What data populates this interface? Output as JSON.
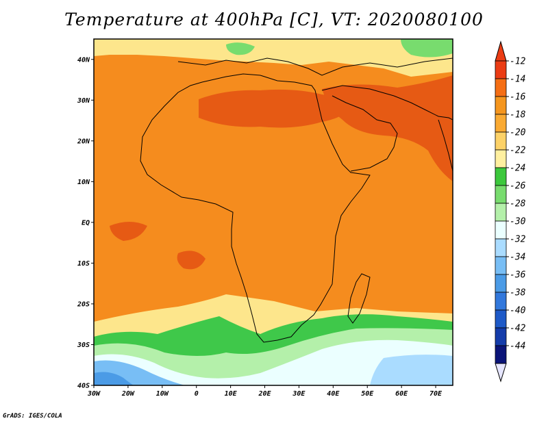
{
  "title": "Temperature at 400hPa [C], VT: 2020080100",
  "credit": "GrADS: IGES/COLA",
  "map": {
    "lon_range": [
      -30,
      75
    ],
    "lat_range": [
      -40,
      45
    ],
    "x_ticks": [
      {
        "lon": -30,
        "label": "30W"
      },
      {
        "lon": -20,
        "label": "20W"
      },
      {
        "lon": -10,
        "label": "10W"
      },
      {
        "lon": 0,
        "label": "0"
      },
      {
        "lon": 10,
        "label": "10E"
      },
      {
        "lon": 20,
        "label": "20E"
      },
      {
        "lon": 30,
        "label": "30E"
      },
      {
        "lon": 40,
        "label": "40E"
      },
      {
        "lon": 50,
        "label": "50E"
      },
      {
        "lon": 60,
        "label": "60E"
      },
      {
        "lon": 70,
        "label": "70E"
      }
    ],
    "y_ticks": [
      {
        "lat": 40,
        "label": "40N"
      },
      {
        "lat": 30,
        "label": "30N"
      },
      {
        "lat": 20,
        "label": "20N"
      },
      {
        "lat": 10,
        "label": "10N"
      },
      {
        "lat": 0,
        "label": "EQ"
      },
      {
        "lat": -10,
        "label": "10S"
      },
      {
        "lat": -20,
        "label": "20S"
      },
      {
        "lat": -30,
        "label": "30S"
      },
      {
        "lat": -40,
        "label": "40S"
      }
    ],
    "fill_colors": {
      "m13": "#e65a14",
      "m15": "#f58c1e",
      "m17": "#fab43c",
      "m19": "#fde68c",
      "m21": "#fff8c8",
      "m23": "#3fc84a",
      "m25": "#78dc6e",
      "m27": "#b4f0aa",
      "m29": "#ebffff",
      "m31": "#aadcff",
      "m33": "#78bef5",
      "m35": "#4b9be6"
    }
  },
  "colorbar": {
    "levels": [
      "-12",
      "-14",
      "-16",
      "-18",
      "-20",
      "-22",
      "-24",
      "-26",
      "-28",
      "-30",
      "-32",
      "-34",
      "-36",
      "-38",
      "-40",
      "-42",
      "-44"
    ],
    "colors": [
      "#eb3c14",
      "#f56e14",
      "#f5961e",
      "#faaa32",
      "#fdd268",
      "#fff0a0",
      "#3cc83c",
      "#78dc6e",
      "#b4f0aa",
      "#ebffff",
      "#aadcff",
      "#78bef5",
      "#4b9be6",
      "#3278dc",
      "#1e5ac8",
      "#143caa",
      "#0a1478"
    ],
    "top_arrow_color": "#eb3c14",
    "bottom_arrow_color": "#e6e6ff"
  }
}
